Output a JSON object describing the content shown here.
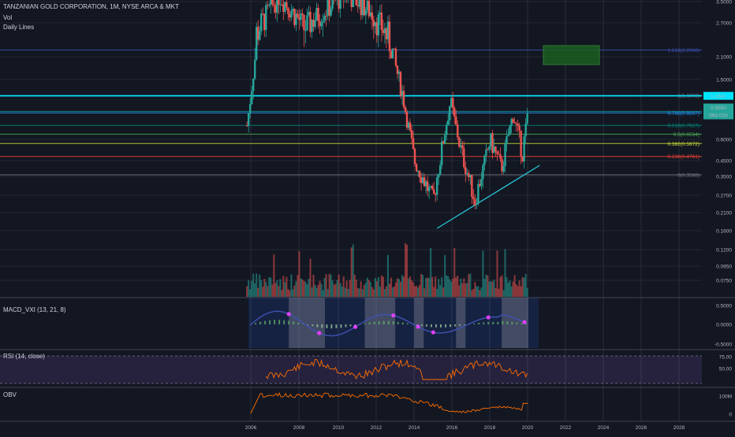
{
  "header": {
    "title": "TANZANIAN GOLD CORPORATION, 1M, NYSE ARCA & MKT",
    "vol_label": "Vol",
    "daily_lines_label": "Daily Lines",
    "macd_label": "MACD_VXI (13, 21, 8)",
    "rsi_label": "RSI (14, close)",
    "obv_label": "OBV"
  },
  "colors": {
    "background": "#131722",
    "grid": "#2a2e39",
    "up": "#26a69a",
    "down": "#ef5350",
    "cyan": "#00e5ff",
    "rsi_line": "#ff6d00",
    "obv_line": "#ff6d00",
    "macd_line": "#3f51b5",
    "macd_dot": "#e040fb"
  },
  "chart_data": [
    {
      "panel": "price",
      "type": "candlestick",
      "scale": "log",
      "x_ticks": [
        "2006",
        "2008",
        "2010",
        "2012",
        "2014",
        "2016",
        "2018",
        "2020",
        "2022",
        "2024",
        "2026",
        "2028"
      ],
      "y_ticks": [
        "3.5000",
        "2.7000",
        "2.1000",
        "1.5000",
        "0.9500",
        "0.6000",
        "0.4500",
        "0.3500",
        "0.2700",
        "0.2100",
        "0.1600",
        "0.1200",
        "0.0950",
        "0.0750"
      ],
      "price_marker": "1.1841",
      "last_price_label": "0.9550",
      "countdown_label": "06d 01h",
      "fib_levels": [
        {
          "label": "1.618(2.2068)",
          "color": "#3f51b5"
        },
        {
          "label": "1(1.1908)",
          "color": "#787b86"
        },
        {
          "label": "0.786(0.9207)",
          "color": "#2196f3"
        },
        {
          "label": "0.618(0.7527)",
          "color": "#00897b"
        },
        {
          "label": "0.5(0.6534)",
          "color": "#4caf50"
        },
        {
          "label": "0.382(0.5672)",
          "color": "#cddc39"
        },
        {
          "label": "0.236(0.4761)",
          "color": "#f44336"
        },
        {
          "label": "0(0.3588)",
          "color": "#787b86"
        }
      ],
      "approx_path": [
        {
          "x": "2005.8",
          "y": 0.75
        },
        {
          "x": "2006.3",
          "y": 2.5
        },
        {
          "x": "2007.5",
          "y": 3.8
        },
        {
          "x": "2008.8",
          "y": 2.6
        },
        {
          "x": "2010.0",
          "y": 3.2
        },
        {
          "x": "2011.0",
          "y": 3.9
        },
        {
          "x": "2012.3",
          "y": 3.1
        },
        {
          "x": "2013.4",
          "y": 2.3
        },
        {
          "x": "2014.0",
          "y": 1.2
        },
        {
          "x": "2014.6",
          "y": 0.45
        },
        {
          "x": "2015.6",
          "y": 0.25
        },
        {
          "x": "2016.5",
          "y": 1.1
        },
        {
          "x": "2017.0",
          "y": 0.55
        },
        {
          "x": "2017.8",
          "y": 0.25
        },
        {
          "x": "2018.6",
          "y": 0.6
        },
        {
          "x": "2019.2",
          "y": 0.4
        },
        {
          "x": "2019.8",
          "y": 0.9
        },
        {
          "x": "2020.3",
          "y": 0.5
        },
        {
          "x": "2020.6",
          "y": 0.95
        }
      ]
    },
    {
      "panel": "macd",
      "type": "line",
      "y_ticks": [
        "0.5000",
        "0.0000",
        "-0.5000"
      ]
    },
    {
      "panel": "rsi",
      "type": "line",
      "y_ticks": [
        "75.00",
        "50.00"
      ]
    },
    {
      "panel": "obv",
      "type": "line",
      "y_ticks": [
        "100M",
        "0"
      ]
    }
  ]
}
